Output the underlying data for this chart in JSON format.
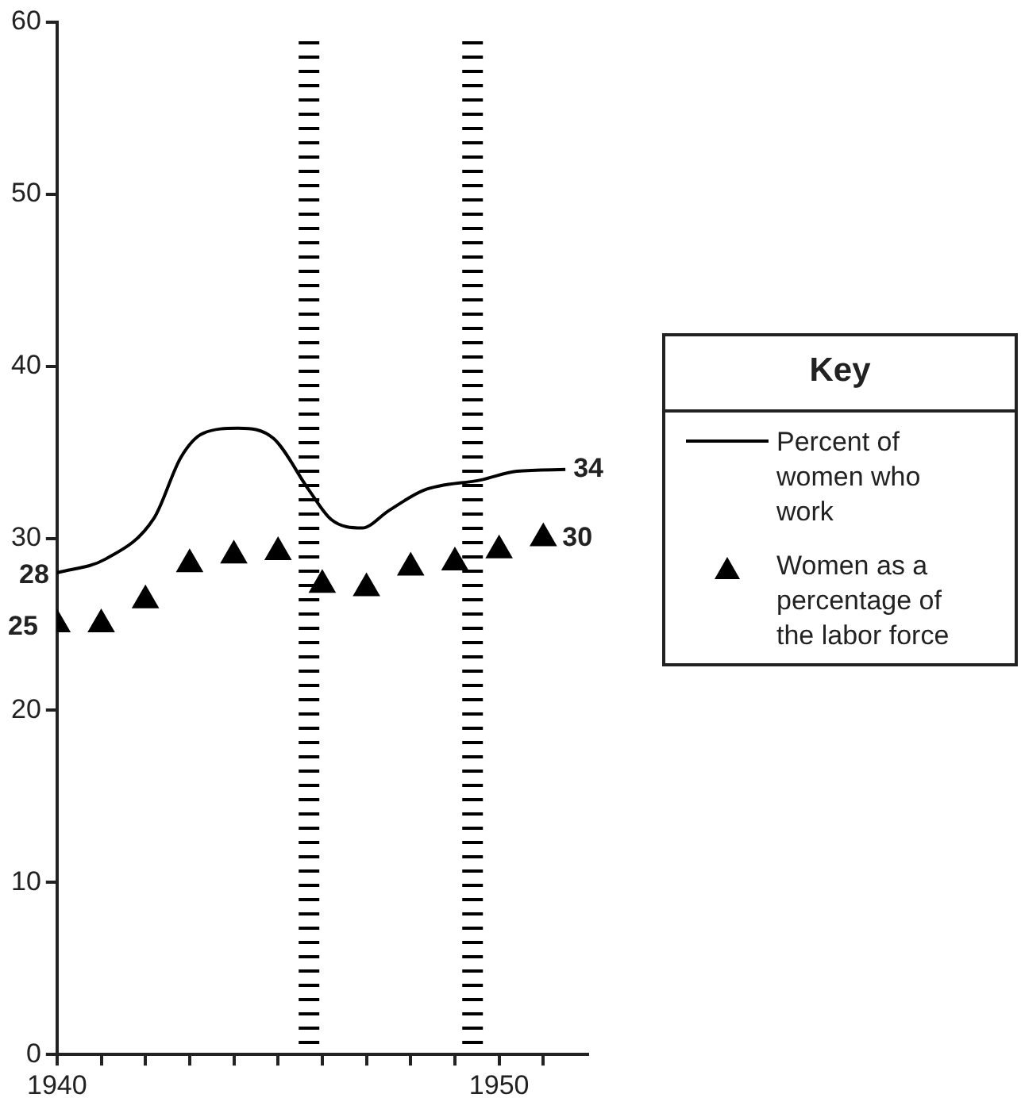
{
  "chart_data": {
    "type": "line",
    "legend_title": "Key",
    "legend": "right",
    "xlim": [
      1940,
      1952
    ],
    "xticks": [
      1940,
      {
        "value": 1941,
        "label": null
      },
      {
        "value": 1942,
        "label": null
      },
      {
        "value": 1943,
        "label": null
      },
      {
        "value": 1944,
        "label": null
      },
      {
        "value": 1945,
        "label": null
      },
      {
        "value": 1946,
        "label": null
      },
      {
        "value": 1947,
        "label": null
      },
      {
        "value": 1948,
        "label": null
      },
      {
        "value": 1949,
        "label": null
      },
      1950,
      {
        "value": 1951,
        "label": null
      }
    ],
    "ylim": [
      0,
      60
    ],
    "yticks": [
      0,
      10,
      20,
      30,
      40,
      50,
      60
    ],
    "ref_lines": [
      {
        "axis": "x",
        "value": 1945.7,
        "color": "#000000",
        "line_style": "dashed"
      },
      {
        "axis": "x",
        "value": 1949.4,
        "color": "#000000",
        "line_style": "dashed"
      }
    ],
    "series": [
      {
        "name": "Percent of women who work",
        "type": "line",
        "color": "#000000",
        "marker": "none",
        "x": [
          1940,
          1941.1,
          1942.2,
          1942.8,
          1943.3,
          1944.1,
          1944.9,
          1945.7,
          1946.2,
          1946.9,
          1947.5,
          1948.3,
          1949.6,
          1950.4,
          1951.5
        ],
        "values": [
          28,
          28.8,
          31.2,
          34.7,
          36.1,
          36.4,
          35.8,
          32.8,
          31.1,
          30.6,
          31.6,
          32.8,
          33.4,
          33.9,
          34
        ],
        "value_labels": [
          "28",
          null,
          null,
          null,
          null,
          null,
          null,
          null,
          null,
          null,
          null,
          null,
          null,
          null,
          "34"
        ]
      },
      {
        "name": "Women as a percentage of the labor force",
        "type": "scatter",
        "color": "#000000",
        "marker": "triangle",
        "x": [
          1940,
          1941,
          1942,
          1943,
          1944,
          1945,
          1946,
          1947,
          1948,
          1949,
          1950,
          1951
        ],
        "values": [
          25,
          25,
          26.4,
          28.5,
          29,
          29.2,
          27.3,
          27.1,
          28.3,
          28.6,
          29.3,
          30
        ],
        "value_labels": [
          "25",
          null,
          null,
          null,
          null,
          null,
          null,
          null,
          null,
          null,
          null,
          "30"
        ]
      }
    ]
  }
}
